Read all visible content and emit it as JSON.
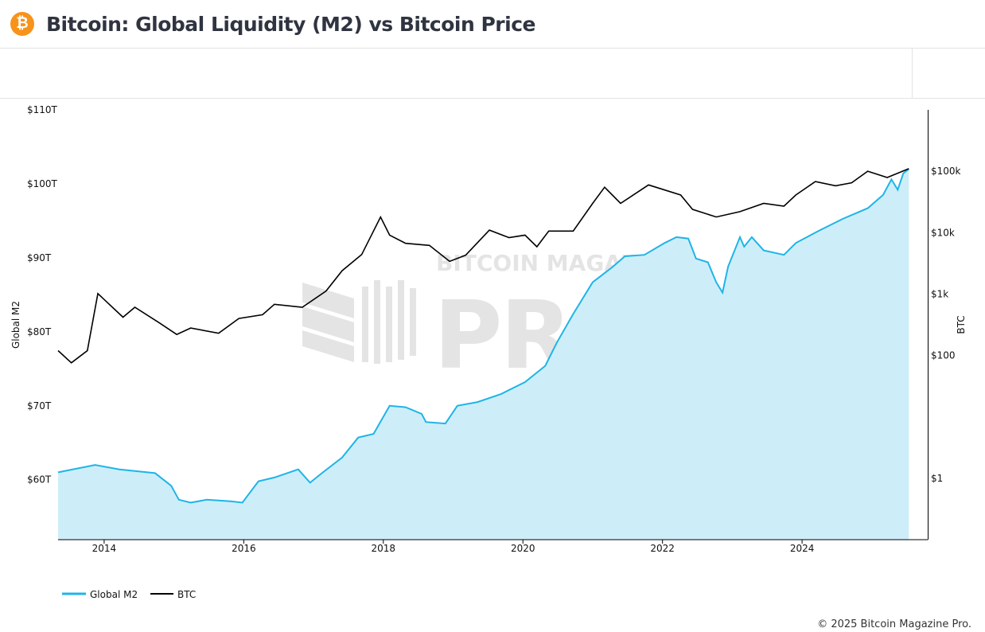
{
  "header": {
    "title": "Bitcoin: Global Liquidity (M2) vs Bitcoin Price",
    "icon": "bitcoin-icon",
    "logo_glyph": "₿"
  },
  "watermark": {
    "line1": "BITCOIN MAGAZINE",
    "line2": "PRO"
  },
  "copyright": "© 2025 Bitcoin Magazine Pro.",
  "chart_data": {
    "type": "line",
    "title": "",
    "xlabel": "",
    "x_ticks": [
      "2014",
      "2016",
      "2018",
      "2020",
      "2022",
      "2024"
    ],
    "xlim": [
      2013.34,
      2025.8
    ],
    "y_left": {
      "label": "Global M2",
      "ticks": [
        "$110T",
        "$100T",
        "$90T",
        "$80T",
        "$70T",
        "$60T"
      ],
      "tick_values": [
        110,
        100,
        90,
        80,
        70,
        60
      ],
      "ylim": [
        51.9,
        110
      ],
      "unit": "trillion USD"
    },
    "y_right": {
      "label": "BTC",
      "scale": "log",
      "ticks": [
        "$100k",
        "$10k",
        "$1k",
        "$100",
        "$1"
      ],
      "tick_values": [
        100000,
        10000,
        1000,
        100,
        1
      ],
      "ylim": [
        0.1,
        1000000
      ]
    },
    "legend_position": "bottom-left",
    "grid": false,
    "series": [
      {
        "name": "Global M2",
        "axis": "left",
        "style": "area",
        "color": "#1fb4e8",
        "fill": "#cdeef9",
        "x": [
          2013.34,
          2013.87,
          2014.22,
          2014.73,
          2014.96,
          2015.07,
          2015.24,
          2015.47,
          2015.81,
          2015.98,
          2016.21,
          2016.44,
          2016.78,
          2016.95,
          2017.12,
          2017.41,
          2017.64,
          2017.86,
          2018.09,
          2018.32,
          2018.55,
          2018.61,
          2018.89,
          2019.06,
          2019.35,
          2019.69,
          2020.03,
          2020.32,
          2020.49,
          2020.72,
          2021.0,
          2021.29,
          2021.46,
          2021.74,
          2022.03,
          2022.2,
          2022.37,
          2022.48,
          2022.65,
          2022.77,
          2022.86,
          2022.94,
          2023.11,
          2023.17,
          2023.28,
          2023.45,
          2023.74,
          2023.91,
          2024.25,
          2024.59,
          2024.94,
          2025.16,
          2025.28,
          2025.37,
          2025.45,
          2025.53
        ],
        "y": [
          61.0,
          62.0,
          61.4,
          60.9,
          59.2,
          57.3,
          56.9,
          57.3,
          57.1,
          56.9,
          59.8,
          60.3,
          61.4,
          59.6,
          60.9,
          63.0,
          65.7,
          66.2,
          70.0,
          69.8,
          68.9,
          67.8,
          67.6,
          70.0,
          70.5,
          71.6,
          73.2,
          75.4,
          78.6,
          82.4,
          86.7,
          88.8,
          90.2,
          90.4,
          92.0,
          92.8,
          92.6,
          89.9,
          89.4,
          86.7,
          85.3,
          88.8,
          92.8,
          91.5,
          92.8,
          91.0,
          90.4,
          92.0,
          93.7,
          95.3,
          96.7,
          98.5,
          100.6,
          99.2,
          101.4,
          102.0
        ]
      },
      {
        "name": "BTC",
        "axis": "right",
        "style": "line",
        "color": "#000000",
        "x": [
          2013.34,
          2013.53,
          2013.76,
          2013.91,
          2014.05,
          2014.27,
          2014.44,
          2014.79,
          2015.04,
          2015.24,
          2015.64,
          2015.93,
          2016.27,
          2016.44,
          2016.84,
          2017.18,
          2017.41,
          2017.69,
          2017.96,
          2018.09,
          2018.32,
          2018.66,
          2018.95,
          2019.18,
          2019.52,
          2019.8,
          2020.03,
          2020.2,
          2020.37,
          2020.72,
          2021.0,
          2021.17,
          2021.4,
          2021.8,
          2022.26,
          2022.43,
          2022.77,
          2023.11,
          2023.45,
          2023.74,
          2023.91,
          2024.19,
          2024.48,
          2024.71,
          2024.94,
          2025.22,
          2025.53
        ],
        "y": [
          120,
          76,
          120,
          1020,
          720,
          420,
          610,
          340,
          220,
          280,
          230,
          400,
          460,
          680,
          610,
          1120,
          2400,
          4400,
          18000,
          9100,
          6700,
          6200,
          3400,
          4300,
          11000,
          8300,
          9100,
          5900,
          10600,
          10600,
          30000,
          55000,
          30000,
          60000,
          41000,
          24000,
          18000,
          22000,
          30000,
          27000,
          41000,
          68000,
          58000,
          65000,
          100000,
          79000,
          110000
        ]
      }
    ]
  }
}
